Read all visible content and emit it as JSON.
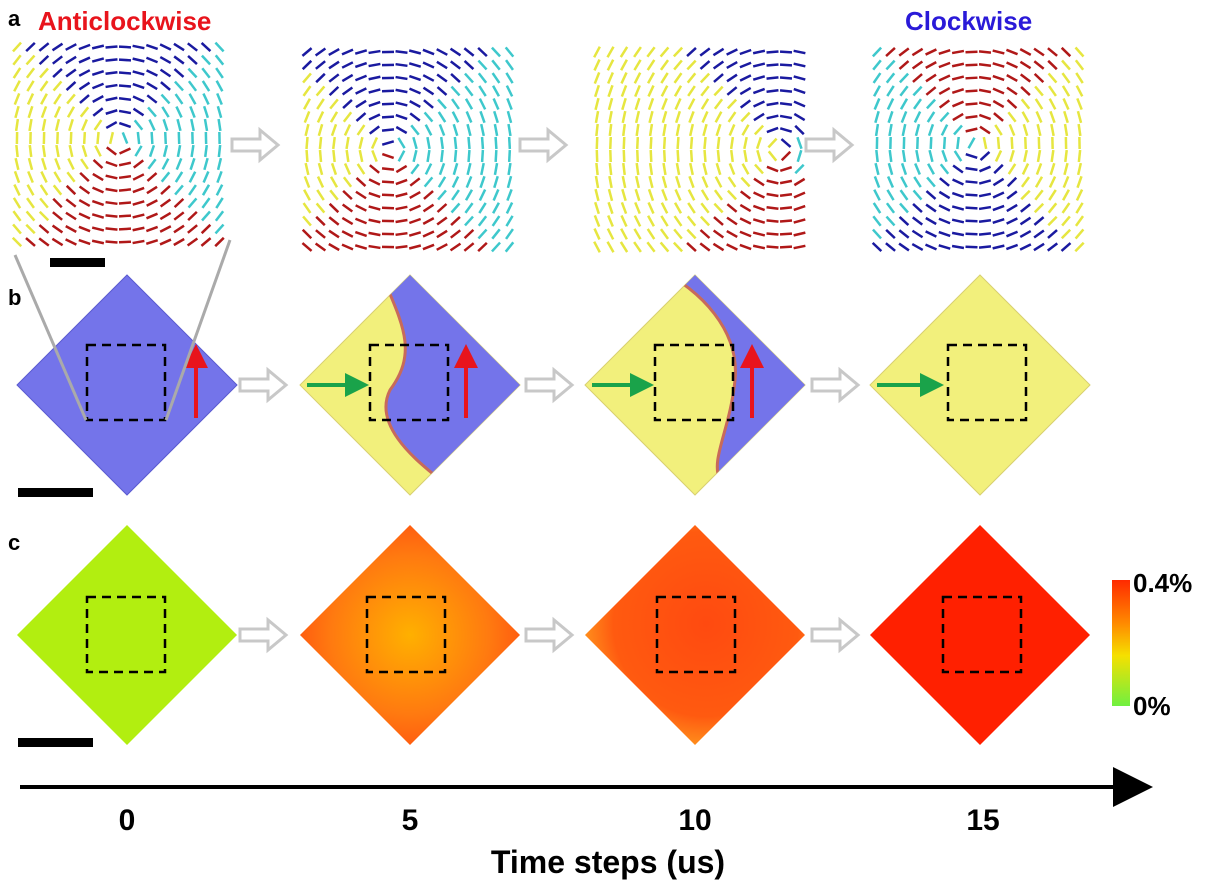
{
  "panels": {
    "a": {
      "label": "a",
      "left_title": "Anticlockwise",
      "right_title": "Clockwise"
    },
    "b": {
      "label": "b"
    },
    "c": {
      "label": "c",
      "colorbar": {
        "top": "0.4%",
        "bottom": "0%"
      }
    }
  },
  "time_axis": {
    "title": "Time steps (us)",
    "ticks": [
      0,
      5,
      10,
      15
    ]
  }
}
